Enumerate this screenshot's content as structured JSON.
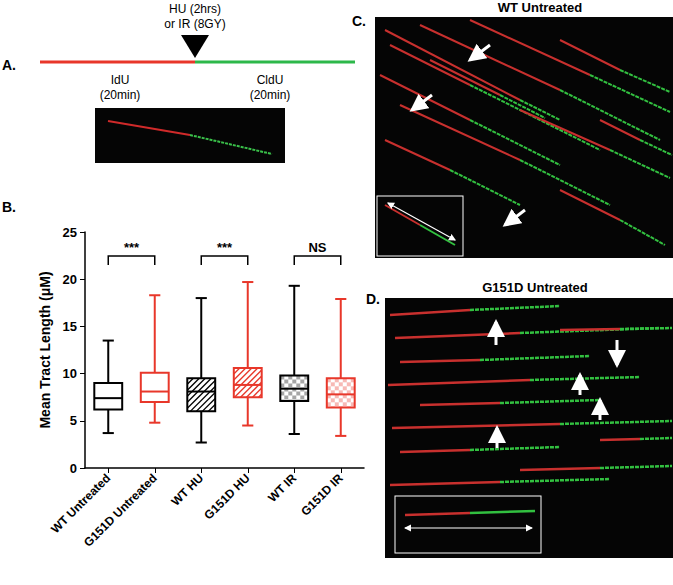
{
  "chart_data": {
    "type": "boxplot",
    "ylabel": "Mean Tract Length (μM)",
    "categories": [
      "WT Untreated",
      "G151D Untreated",
      "WT HU",
      "G151D HU",
      "WT IR",
      "G151D IR"
    ],
    "values": [
      [
        3.7,
        6.2,
        7.4,
        9.0,
        13.5
      ],
      [
        4.8,
        7.0,
        8.1,
        10.1,
        18.3
      ],
      [
        2.7,
        6.0,
        8.1,
        9.5,
        18.0
      ],
      [
        4.5,
        7.5,
        8.8,
        10.6,
        19.7
      ],
      [
        3.6,
        7.1,
        8.4,
        9.8,
        19.3
      ],
      [
        3.4,
        6.4,
        7.8,
        9.5,
        17.9
      ]
    ],
    "colors": [
      "#000000",
      "#e8372a",
      "#000000",
      "#e8372a",
      "#000000",
      "#e8372a"
    ],
    "ylim": [
      0,
      25
    ],
    "yticks": [
      0,
      5,
      10,
      15,
      20,
      25
    ],
    "grid": false,
    "annotations": [
      {
        "between": [
          "WT Untreated",
          "G151D Untreated"
        ],
        "text": "***"
      },
      {
        "between": [
          "WT HU",
          "G151D HU"
        ],
        "text": "***"
      },
      {
        "between": [
          "WT IR",
          "G151D IR"
        ],
        "text": "NS"
      }
    ]
  },
  "panels": {
    "A": {
      "label": "A.",
      "treatment": [
        "HU (2hrs)",
        "or IR (8GY)"
      ],
      "first_pulse": [
        "IdU",
        "(20min)"
      ],
      "second_pulse": [
        "CldU",
        "(20min)"
      ]
    },
    "B": {
      "label": "B."
    },
    "C": {
      "label": "C.",
      "title": "WT Untreated"
    },
    "D": {
      "label": "D.",
      "title": "G151D Untreated"
    }
  }
}
